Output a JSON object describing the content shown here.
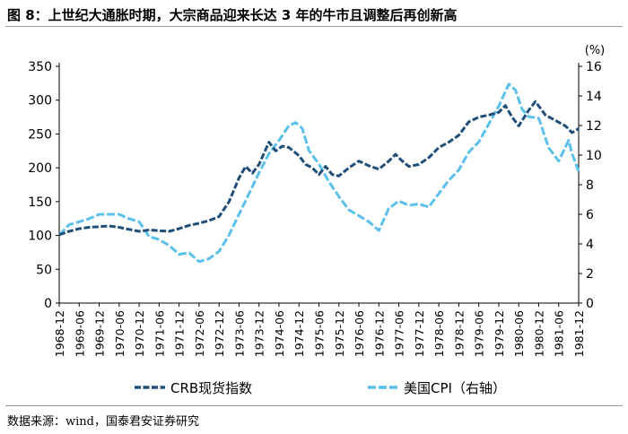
{
  "figure": {
    "title": "图 8：上世纪大通胀时期，大宗商品迎来长达 3 年的牛市且调整后再创新高",
    "source": "数据来源：wind，国泰君安证券研究"
  },
  "chart_data": {
    "type": "line",
    "title": "图 8：上世纪大通胀时期，大宗商品迎来长达 3 年的牛市且调整后再创新高",
    "xlabel": "",
    "ylabel_left": "",
    "ylabel_right": "(%)",
    "x_ticks": [
      "1968-12",
      "1969-06",
      "1969-12",
      "1970-06",
      "1970-12",
      "1971-06",
      "1971-12",
      "1972-06",
      "1972-12",
      "1973-06",
      "1973-12",
      "1974-06",
      "1974-12",
      "1975-06",
      "1975-12",
      "1976-06",
      "1976-12",
      "1977-06",
      "1977-12",
      "1978-06",
      "1978-12",
      "1979-06",
      "1979-12",
      "1980-06",
      "1980-12",
      "1981-06",
      "1981-12"
    ],
    "ylim_left": [
      0,
      350
    ],
    "yticks_left": [
      0,
      50,
      100,
      150,
      200,
      250,
      300,
      350
    ],
    "ylim_right": [
      0,
      16
    ],
    "yticks_right": [
      0,
      2,
      4,
      6,
      8,
      10,
      12,
      14,
      16
    ],
    "legend_position": "bottom",
    "grid": false,
    "series": [
      {
        "name": "CRB现货指数",
        "axis": "left",
        "style": "dash",
        "color": "#1f4e79",
        "points": [
          [
            "1968-12",
            101
          ],
          [
            "1969-03",
            106
          ],
          [
            "1969-06",
            110
          ],
          [
            "1969-09",
            112
          ],
          [
            "1969-12",
            113
          ],
          [
            "1970-03",
            114
          ],
          [
            "1970-06",
            112
          ],
          [
            "1970-09",
            109
          ],
          [
            "1970-12",
            106
          ],
          [
            "1971-03",
            108
          ],
          [
            "1971-06",
            107
          ],
          [
            "1971-09",
            106
          ],
          [
            "1971-12",
            110
          ],
          [
            "1972-03",
            115
          ],
          [
            "1972-06",
            118
          ],
          [
            "1972-09",
            122
          ],
          [
            "1972-12",
            128
          ],
          [
            "1973-03",
            150
          ],
          [
            "1973-06",
            185
          ],
          [
            "1973-08",
            202
          ],
          [
            "1973-10",
            192
          ],
          [
            "1973-12",
            205
          ],
          [
            "1974-03",
            238
          ],
          [
            "1974-05",
            225
          ],
          [
            "1974-07",
            232
          ],
          [
            "1974-09",
            230
          ],
          [
            "1974-12",
            218
          ],
          [
            "1975-02",
            205
          ],
          [
            "1975-04",
            200
          ],
          [
            "1975-06",
            190
          ],
          [
            "1975-08",
            202
          ],
          [
            "1975-10",
            190
          ],
          [
            "1975-12",
            188
          ],
          [
            "1976-03",
            200
          ],
          [
            "1976-06",
            210
          ],
          [
            "1976-09",
            203
          ],
          [
            "1976-12",
            198
          ],
          [
            "1977-03",
            210
          ],
          [
            "1977-05",
            220
          ],
          [
            "1977-07",
            210
          ],
          [
            "1977-09",
            202
          ],
          [
            "1977-12",
            205
          ],
          [
            "1978-03",
            215
          ],
          [
            "1978-06",
            230
          ],
          [
            "1978-09",
            238
          ],
          [
            "1978-12",
            248
          ],
          [
            "1979-03",
            268
          ],
          [
            "1979-06",
            275
          ],
          [
            "1979-09",
            278
          ],
          [
            "1979-12",
            282
          ],
          [
            "1980-02",
            292
          ],
          [
            "1980-04",
            275
          ],
          [
            "1980-06",
            262
          ],
          [
            "1980-09",
            285
          ],
          [
            "1980-11",
            298
          ],
          [
            "1981-02",
            278
          ],
          [
            "1981-05",
            270
          ],
          [
            "1981-08",
            262
          ],
          [
            "1981-10",
            252
          ],
          [
            "1981-12",
            258
          ]
        ]
      },
      {
        "name": "美国CPI（右轴）",
        "axis": "right",
        "style": "dash",
        "color": "#5bc0eb",
        "points": [
          [
            "1968-12",
            4.6
          ],
          [
            "1969-03",
            5.3
          ],
          [
            "1969-06",
            5.5
          ],
          [
            "1969-09",
            5.7
          ],
          [
            "1969-12",
            6.0
          ],
          [
            "1970-03",
            6.0
          ],
          [
            "1970-06",
            6.0
          ],
          [
            "1970-09",
            5.7
          ],
          [
            "1970-12",
            5.5
          ],
          [
            "1971-03",
            4.5
          ],
          [
            "1971-06",
            4.3
          ],
          [
            "1971-09",
            3.9
          ],
          [
            "1971-12",
            3.3
          ],
          [
            "1972-03",
            3.4
          ],
          [
            "1972-06",
            2.8
          ],
          [
            "1972-09",
            3.0
          ],
          [
            "1972-12",
            3.5
          ],
          [
            "1973-03",
            4.6
          ],
          [
            "1973-06",
            6.0
          ],
          [
            "1973-09",
            7.4
          ],
          [
            "1973-12",
            8.8
          ],
          [
            "1974-03",
            10.1
          ],
          [
            "1974-06",
            11.0
          ],
          [
            "1974-09",
            12.0
          ],
          [
            "1974-11",
            12.2
          ],
          [
            "1975-01",
            11.8
          ],
          [
            "1975-03",
            10.3
          ],
          [
            "1975-06",
            9.4
          ],
          [
            "1975-09",
            8.2
          ],
          [
            "1975-12",
            7.2
          ],
          [
            "1976-03",
            6.3
          ],
          [
            "1976-06",
            5.9
          ],
          [
            "1976-09",
            5.5
          ],
          [
            "1976-12",
            4.9
          ],
          [
            "1977-03",
            6.4
          ],
          [
            "1977-06",
            6.9
          ],
          [
            "1977-09",
            6.6
          ],
          [
            "1977-12",
            6.7
          ],
          [
            "1978-03",
            6.5
          ],
          [
            "1978-06",
            7.4
          ],
          [
            "1978-09",
            8.3
          ],
          [
            "1978-12",
            9.0
          ],
          [
            "1979-03",
            10.2
          ],
          [
            "1979-06",
            10.9
          ],
          [
            "1979-09",
            12.1
          ],
          [
            "1979-12",
            13.3
          ],
          [
            "1980-03",
            14.8
          ],
          [
            "1980-05",
            14.4
          ],
          [
            "1980-07",
            13.1
          ],
          [
            "1980-09",
            12.6
          ],
          [
            "1980-12",
            12.5
          ],
          [
            "1981-03",
            10.5
          ],
          [
            "1981-06",
            9.6
          ],
          [
            "1981-09",
            11.0
          ],
          [
            "1981-10",
            10.1
          ],
          [
            "1981-12",
            8.9
          ]
        ]
      }
    ]
  }
}
